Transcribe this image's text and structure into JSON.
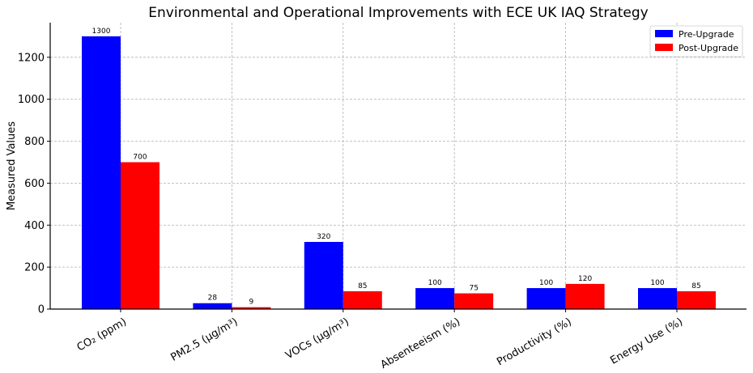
{
  "chart_data": {
    "type": "bar",
    "title": "Environmental and Operational Improvements with ECE UK IAQ Strategy",
    "xlabel": "",
    "ylabel": "Measured Values",
    "categories": [
      "CO₂ (ppm)",
      "PM2.5 (µg/m³)",
      "VOCs (µg/m³)",
      "Absenteeism (%)",
      "Productivity (%)",
      "Energy Use (%)"
    ],
    "series": [
      {
        "name": "Pre-Upgrade",
        "color": "#0000ff",
        "values": [
          1300,
          28,
          320,
          100,
          100,
          100
        ]
      },
      {
        "name": "Post-Upgrade",
        "color": "#ff0000",
        "values": [
          700,
          9,
          85,
          75,
          120,
          85
        ]
      }
    ],
    "ylim": [
      0,
      1365
    ],
    "yticks": [
      0,
      200,
      400,
      600,
      800,
      1000,
      1200
    ],
    "grid": true,
    "legend_position": "top-right"
  }
}
